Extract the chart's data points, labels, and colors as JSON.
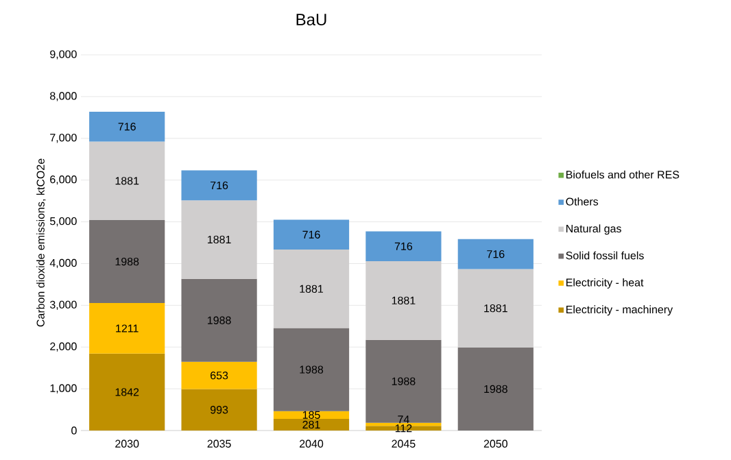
{
  "chart_data": {
    "type": "bar",
    "title": "BaU",
    "ylabel": "Carbon dioxide emissions, ktCO2e",
    "categories": [
      "2030",
      "2035",
      "2040",
      "2045",
      "2050"
    ],
    "stacked": true,
    "data_labels": true,
    "grid": "y",
    "legend": "right",
    "ylim": [
      0,
      9000
    ],
    "yticks": [
      0,
      {
        "value": 1000,
        "label": "1,000"
      },
      {
        "value": 2000,
        "label": "2,000"
      },
      {
        "value": 3000,
        "label": "3,000"
      },
      {
        "value": 4000,
        "label": "4,000"
      },
      {
        "value": 5000,
        "label": "5,000"
      },
      {
        "value": 6000,
        "label": "6,000"
      },
      {
        "value": 7000,
        "label": "7,000"
      },
      {
        "value": 8000,
        "label": "8,000"
      },
      {
        "value": 9000,
        "label": "9,000"
      }
    ],
    "series": [
      {
        "name": "Electricity - machinery",
        "color": "#bf9000",
        "values": [
          1842,
          993,
          281,
          112,
          null
        ]
      },
      {
        "name": "Electricity - heat",
        "color": "#ffc000",
        "values": [
          1211,
          653,
          185,
          74,
          null
        ]
      },
      {
        "name": "Solid fossil fuels",
        "color": "#767171",
        "values": [
          1988,
          1988,
          1988,
          1988,
          1988
        ]
      },
      {
        "name": "Natural gas",
        "color": "#d0cece",
        "values": [
          1881,
          1881,
          1881,
          1881,
          1881
        ]
      },
      {
        "name": "Others",
        "color": "#5b9bd5",
        "values": [
          716,
          716,
          716,
          716,
          716
        ]
      },
      {
        "name": "Biofuels and other RES",
        "color": "#70ad47",
        "values": [
          null,
          null,
          null,
          null,
          null
        ]
      }
    ]
  }
}
